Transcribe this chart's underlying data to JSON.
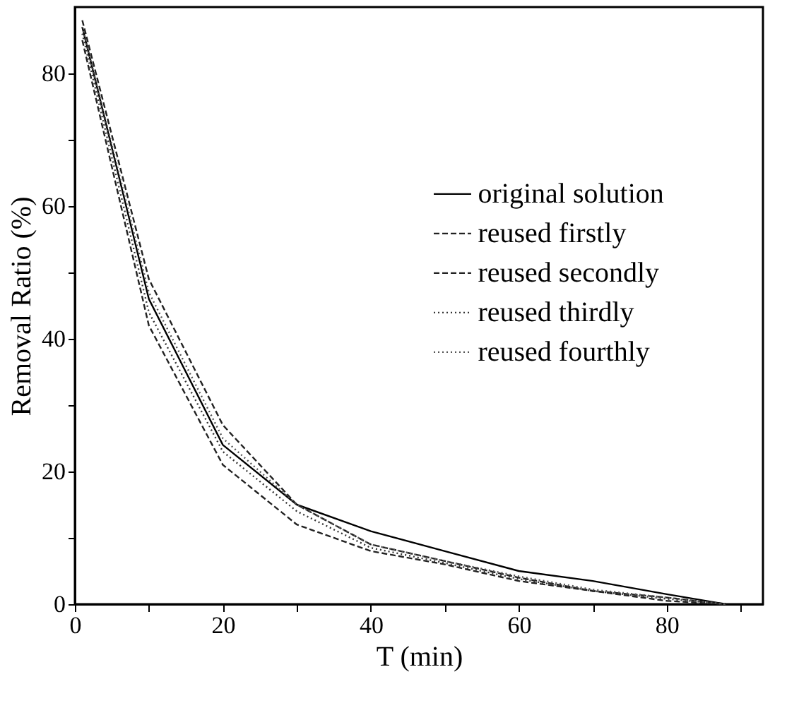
{
  "chart_data": {
    "type": "line",
    "xlabel": "T (min)",
    "ylabel": "Removal Ratio (%)",
    "xlim": [
      0,
      93
    ],
    "ylim": [
      0,
      90
    ],
    "xticks": [
      0,
      {
        "value": 10,
        "label": null
      },
      20,
      {
        "value": 30,
        "label": null
      },
      40,
      {
        "value": 50,
        "label": null
      },
      60,
      {
        "value": 70,
        "label": null
      },
      80,
      {
        "value": 90,
        "label": null
      }
    ],
    "yticks": [
      0,
      {
        "value": 10,
        "label": null
      },
      20,
      {
        "value": 30,
        "label": null
      },
      40,
      {
        "value": 50,
        "label": null
      },
      60,
      {
        "value": 70,
        "label": null
      },
      80
    ],
    "grid": false,
    "legend": "right",
    "marker": "none",
    "series": [
      {
        "name": "original solution",
        "color": "#000000",
        "line_style": "solid",
        "x": [
          1,
          10,
          20,
          30,
          40,
          50,
          60,
          70,
          80,
          88
        ],
        "values": [
          87,
          46,
          24,
          15,
          11,
          8,
          5,
          3.5,
          1.5,
          0
        ]
      },
      {
        "name": "reused firstly",
        "color": "#222222",
        "line_style": "dashed",
        "x": [
          1,
          10,
          20,
          30,
          35,
          40,
          50,
          60,
          70,
          80,
          88
        ],
        "values": [
          88,
          49,
          27,
          15,
          12,
          9,
          6.5,
          4,
          2,
          1,
          0
        ]
      },
      {
        "name": "reused secondly",
        "color": "#222222",
        "line_style": "dashed",
        "x": [
          1,
          10,
          20,
          30,
          40,
          50,
          60,
          70,
          80,
          88
        ],
        "values": [
          85,
          42,
          21,
          12,
          8,
          6,
          3.5,
          2,
          0.5,
          0
        ]
      },
      {
        "name": "reused thirdly",
        "color": "#333333",
        "line_style": "dotted",
        "x": [
          1,
          10,
          20,
          30,
          40,
          50,
          60,
          70,
          80,
          88
        ],
        "values": [
          86,
          44,
          23,
          14,
          8.5,
          6.2,
          3.8,
          2,
          0.8,
          0
        ]
      },
      {
        "name": "reused fourthly",
        "color": "#555555",
        "line_style": "dotted",
        "x": [
          1,
          10,
          20,
          30,
          40,
          50,
          60,
          70,
          80,
          88
        ],
        "values": [
          87,
          47,
          25,
          15,
          9,
          6.5,
          4.2,
          2.2,
          1,
          0
        ]
      }
    ]
  }
}
